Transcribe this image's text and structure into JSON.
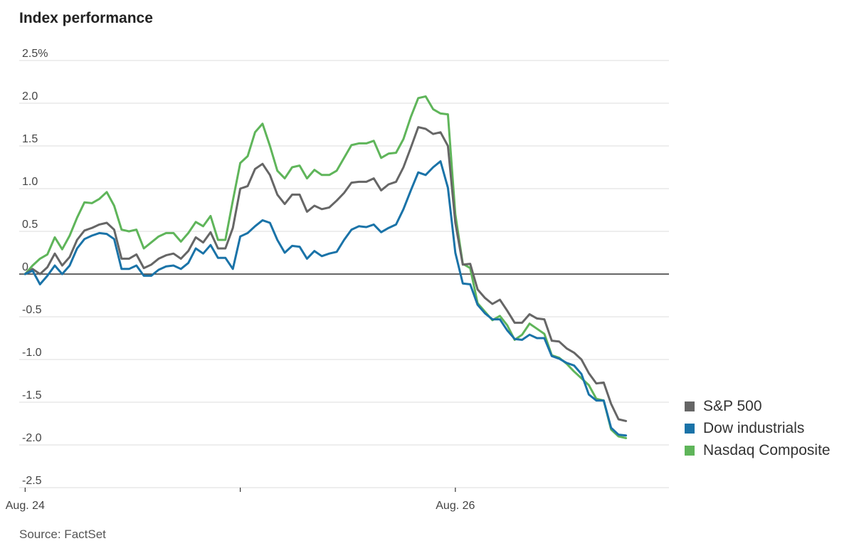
{
  "header": {
    "title": "Index performance"
  },
  "footer": {
    "source": "Source: FactSet"
  },
  "colors": {
    "sp500": "#666666",
    "dow": "#1a73a8",
    "nasdaq": "#5fb55a"
  },
  "chart_data": {
    "type": "line",
    "title": "Index performance",
    "xlabel": "",
    "ylabel": "",
    "ylim": [
      -2.5,
      2.5
    ],
    "y_ticks": [
      2.5,
      2.0,
      1.5,
      1.0,
      0.5,
      0,
      -0.5,
      -1.0,
      -1.5,
      -2.0,
      -2.5
    ],
    "y_tick_labels": [
      "2.5%",
      "2.0",
      "1.5",
      "1.0",
      "0.5",
      "0",
      "-0.5",
      "-1.0",
      "-1.5",
      "-2.0",
      "-2.5"
    ],
    "x_tick_labels": [
      "Aug. 24",
      "",
      "Aug. 26"
    ],
    "x_tick_positions": [
      0,
      29,
      58
    ],
    "x_range": [
      -0.8,
      86.8
    ],
    "grid": true,
    "legend": "bottom-right",
    "series": [
      {
        "name": "S&P 500",
        "color": "#666666",
        "values": [
          0,
          0.06,
          0.0,
          0.08,
          0.24,
          0.1,
          0.2,
          0.4,
          0.51,
          0.54,
          0.58,
          0.6,
          0.52,
          0.18,
          0.18,
          0.23,
          0.07,
          0.11,
          0.18,
          0.22,
          0.24,
          0.18,
          0.27,
          0.43,
          0.37,
          0.49,
          0.3,
          0.3,
          0.54,
          1.0,
          1.03,
          1.23,
          1.29,
          1.16,
          0.93,
          0.82,
          0.93,
          0.93,
          0.73,
          0.8,
          0.76,
          0.78,
          0.86,
          0.95,
          1.07,
          1.08,
          1.08,
          1.12,
          0.98,
          1.05,
          1.08,
          1.25,
          1.48,
          1.72,
          1.7,
          1.64,
          1.66,
          1.5,
          0.6,
          0.11,
          0.12,
          -0.18,
          -0.28,
          -0.35,
          -0.3,
          -0.43,
          -0.57,
          -0.57,
          -0.47,
          -0.52,
          -0.53,
          -0.78,
          -0.79,
          -0.87,
          -0.92,
          -1.0,
          -1.16,
          -1.28,
          -1.27,
          -1.52,
          -1.7,
          -1.72
        ]
      },
      {
        "name": "Dow industrials",
        "color": "#1a73a8",
        "values": [
          0,
          0.04,
          -0.12,
          -0.02,
          0.1,
          0.0,
          0.1,
          0.3,
          0.41,
          0.45,
          0.48,
          0.47,
          0.41,
          0.06,
          0.06,
          0.1,
          -0.02,
          -0.02,
          0.05,
          0.09,
          0.1,
          0.06,
          0.13,
          0.3,
          0.24,
          0.34,
          0.19,
          0.19,
          0.06,
          0.44,
          0.48,
          0.56,
          0.63,
          0.6,
          0.4,
          0.25,
          0.33,
          0.32,
          0.18,
          0.27,
          0.21,
          0.24,
          0.26,
          0.4,
          0.52,
          0.56,
          0.55,
          0.58,
          0.49,
          0.54,
          0.58,
          0.76,
          0.98,
          1.19,
          1.16,
          1.25,
          1.32,
          1.01,
          0.25,
          -0.11,
          -0.12,
          -0.36,
          -0.46,
          -0.53,
          -0.53,
          -0.66,
          -0.76,
          -0.77,
          -0.71,
          -0.75,
          -0.75,
          -0.96,
          -0.99,
          -1.04,
          -1.07,
          -1.17,
          -1.41,
          -1.48,
          -1.48,
          -1.8,
          -1.88,
          -1.89
        ]
      },
      {
        "name": "Nasdaq Composite",
        "color": "#5fb55a",
        "values": [
          0,
          0.1,
          0.18,
          0.23,
          0.43,
          0.29,
          0.45,
          0.66,
          0.84,
          0.83,
          0.88,
          0.96,
          0.8,
          0.52,
          0.5,
          0.52,
          0.3,
          0.37,
          0.44,
          0.48,
          0.48,
          0.38,
          0.48,
          0.61,
          0.56,
          0.68,
          0.4,
          0.4,
          0.86,
          1.3,
          1.38,
          1.66,
          1.76,
          1.5,
          1.21,
          1.12,
          1.25,
          1.27,
          1.12,
          1.22,
          1.16,
          1.16,
          1.21,
          1.36,
          1.51,
          1.53,
          1.53,
          1.56,
          1.36,
          1.41,
          1.42,
          1.58,
          1.84,
          2.06,
          2.08,
          1.93,
          1.88,
          1.87,
          0.7,
          0.12,
          0.07,
          -0.34,
          -0.44,
          -0.54,
          -0.49,
          -0.6,
          -0.77,
          -0.71,
          -0.58,
          -0.64,
          -0.7,
          -0.95,
          -0.98,
          -1.05,
          -1.14,
          -1.22,
          -1.3,
          -1.46,
          -1.48,
          -1.82,
          -1.9,
          -1.92
        ]
      }
    ]
  }
}
